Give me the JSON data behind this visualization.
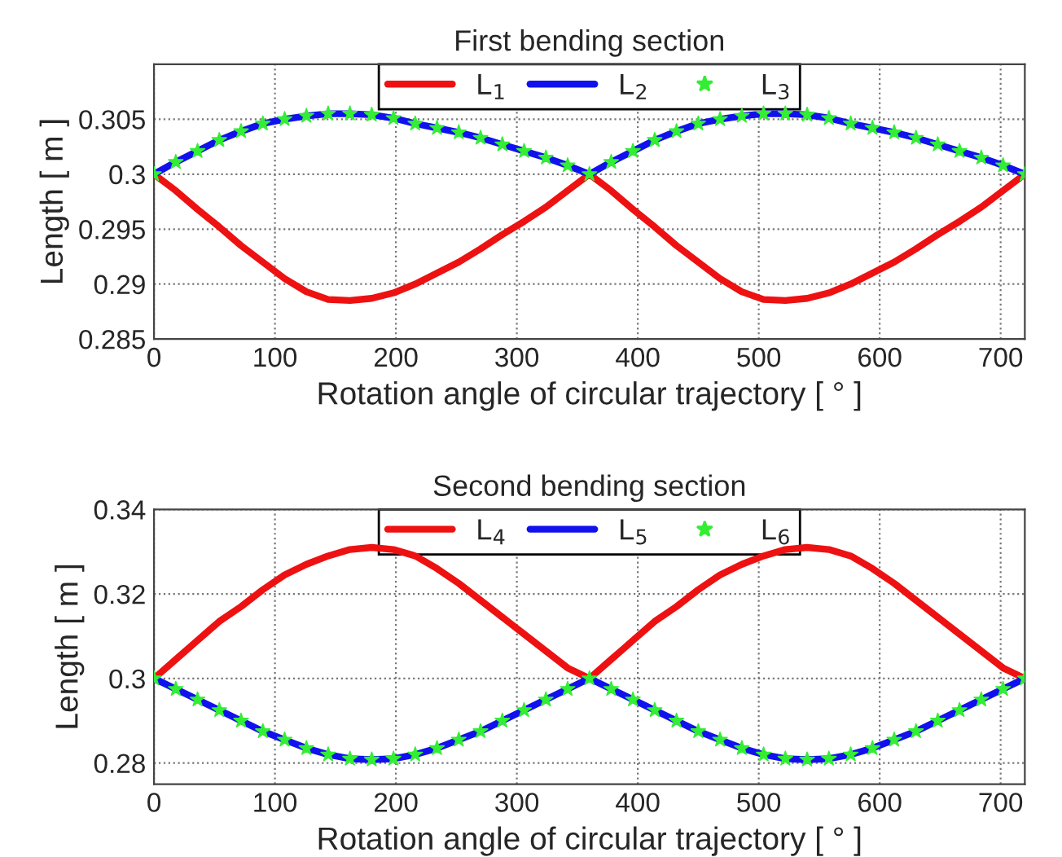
{
  "chart_data": [
    {
      "type": "line",
      "title": "First bending section",
      "xlabel": "Rotation angle of circular trajectory [ ° ]",
      "ylabel": "Length [ m ]",
      "x": [
        0,
        18,
        36,
        54,
        72,
        90,
        108,
        126,
        144,
        162,
        180,
        198,
        216,
        234,
        252,
        270,
        288,
        306,
        324,
        342,
        360,
        378,
        396,
        414,
        432,
        450,
        468,
        486,
        504,
        522,
        540,
        558,
        576,
        594,
        612,
        630,
        648,
        666,
        684,
        702,
        720
      ],
      "xlim": [
        0,
        720
      ],
      "xticks": [
        0,
        100,
        200,
        300,
        400,
        500,
        600,
        700
      ],
      "ylim": [
        0.285,
        0.31
      ],
      "yticks": [
        0.285,
        0.29,
        0.295,
        0.3,
        0.305
      ],
      "grid": true,
      "legend": "top",
      "series": [
        {
          "name": "L$_{1}$",
          "color": "#ee1111",
          "values": [
            0.3,
            0.2985,
            0.2968,
            0.2952,
            0.2935,
            0.292,
            0.2905,
            0.2893,
            0.2886,
            0.2885,
            0.2887,
            0.2892,
            0.29,
            0.291,
            0.292,
            0.2932,
            0.2945,
            0.2957,
            0.297,
            0.2985,
            0.3,
            0.2985,
            0.2968,
            0.2952,
            0.2935,
            0.292,
            0.2905,
            0.2893,
            0.2886,
            0.2885,
            0.2887,
            0.2892,
            0.29,
            0.291,
            0.292,
            0.2932,
            0.2945,
            0.2957,
            0.297,
            0.2985,
            0.3
          ]
        },
        {
          "name": "L$_{2}$",
          "color": "#1111ee",
          "values": [
            0.3,
            0.3011,
            0.3021,
            0.3031,
            0.3039,
            0.3046,
            0.305,
            0.3053,
            0.3055,
            0.3055,
            0.3054,
            0.3051,
            0.3046,
            0.3042,
            0.3038,
            0.3033,
            0.3027,
            0.3021,
            0.3015,
            0.3008,
            0.3,
            0.3011,
            0.3021,
            0.3031,
            0.3039,
            0.3046,
            0.305,
            0.3053,
            0.3055,
            0.3055,
            0.3054,
            0.3051,
            0.3046,
            0.3042,
            0.3038,
            0.3033,
            0.3027,
            0.3021,
            0.3015,
            0.3008,
            0.3
          ]
        },
        {
          "name": "L$_{3}$",
          "type": "scatter",
          "marker": "star",
          "color": "#33ee33",
          "values": [
            0.3,
            0.3011,
            0.3021,
            0.3031,
            0.3039,
            0.3046,
            0.305,
            0.3053,
            0.3055,
            0.3055,
            0.3054,
            0.3051,
            0.3046,
            0.3042,
            0.3038,
            0.3033,
            0.3027,
            0.3021,
            0.3015,
            0.3008,
            0.3,
            0.3011,
            0.3021,
            0.3031,
            0.3039,
            0.3046,
            0.305,
            0.3053,
            0.3055,
            0.3055,
            0.3054,
            0.3051,
            0.3046,
            0.3042,
            0.3038,
            0.3033,
            0.3027,
            0.3021,
            0.3015,
            0.3008,
            0.3
          ]
        }
      ]
    },
    {
      "type": "line",
      "title": "Second bending section",
      "xlabel": "Rotation angle of circular trajectory [ ° ]",
      "ylabel": "Length [ m ]",
      "x": [
        0,
        18,
        36,
        54,
        72,
        90,
        108,
        126,
        144,
        162,
        180,
        198,
        216,
        234,
        252,
        270,
        288,
        306,
        324,
        342,
        360,
        378,
        396,
        414,
        432,
        450,
        468,
        486,
        504,
        522,
        540,
        558,
        576,
        594,
        612,
        630,
        648,
        666,
        684,
        702,
        720
      ],
      "xlim": [
        0,
        720
      ],
      "xticks": [
        0,
        100,
        200,
        300,
        400,
        500,
        600,
        700
      ],
      "ylim": [
        0.275,
        0.34
      ],
      "yticks": [
        0.28,
        0.3,
        0.32,
        0.34
      ],
      "grid": true,
      "legend": "top",
      "series": [
        {
          "name": "L$_{4}$",
          "color": "#ee1111",
          "values": [
            0.3,
            0.3045,
            0.309,
            0.3135,
            0.317,
            0.321,
            0.3245,
            0.327,
            0.329,
            0.3305,
            0.331,
            0.3305,
            0.329,
            0.326,
            0.3225,
            0.3185,
            0.3145,
            0.3105,
            0.3065,
            0.3025,
            0.3,
            0.3045,
            0.309,
            0.3135,
            0.317,
            0.321,
            0.3245,
            0.327,
            0.329,
            0.3305,
            0.331,
            0.3305,
            0.329,
            0.326,
            0.3225,
            0.3185,
            0.3145,
            0.3105,
            0.3065,
            0.3025,
            0.3
          ]
        },
        {
          "name": "L$_{5}$",
          "color": "#1111ee",
          "values": [
            0.3,
            0.2975,
            0.295,
            0.2925,
            0.29,
            0.2875,
            0.2855,
            0.2835,
            0.282,
            0.281,
            0.2808,
            0.281,
            0.282,
            0.2835,
            0.2855,
            0.2875,
            0.29,
            0.2925,
            0.295,
            0.2975,
            0.3,
            0.2975,
            0.295,
            0.2925,
            0.29,
            0.2875,
            0.2855,
            0.2835,
            0.282,
            0.281,
            0.2808,
            0.281,
            0.282,
            0.2835,
            0.2855,
            0.2875,
            0.29,
            0.2925,
            0.295,
            0.2975,
            0.3
          ]
        },
        {
          "name": "L$_{6}$",
          "type": "scatter",
          "marker": "star",
          "color": "#33ee33",
          "values": [
            0.3,
            0.2975,
            0.295,
            0.2925,
            0.29,
            0.2875,
            0.2855,
            0.2835,
            0.282,
            0.281,
            0.2808,
            0.281,
            0.282,
            0.2835,
            0.2855,
            0.2875,
            0.29,
            0.2925,
            0.295,
            0.2975,
            0.3,
            0.2975,
            0.295,
            0.2925,
            0.29,
            0.2875,
            0.2855,
            0.2835,
            0.282,
            0.281,
            0.2808,
            0.281,
            0.282,
            0.2835,
            0.2855,
            0.2875,
            0.29,
            0.2925,
            0.295,
            0.2975,
            0.3
          ]
        }
      ]
    }
  ]
}
